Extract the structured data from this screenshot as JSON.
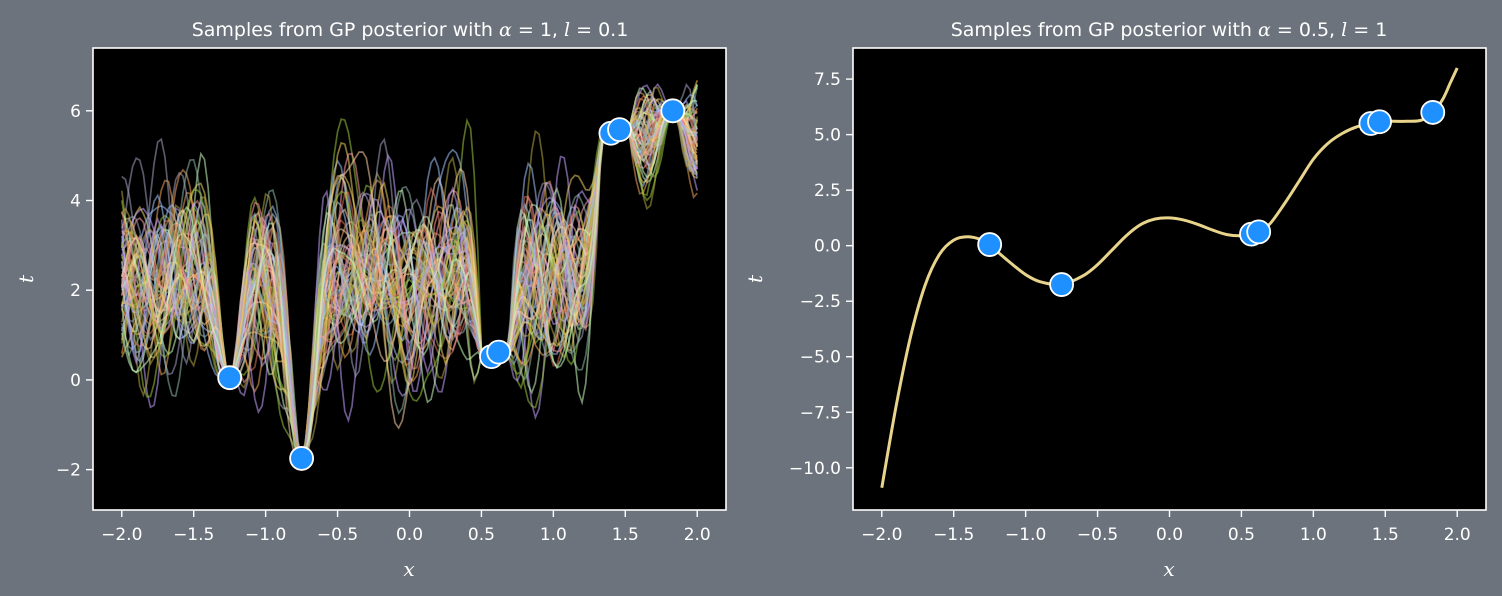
{
  "palette": {
    "figure_bg": "#6c737c",
    "axes_bg": "#000000",
    "text": "#ffffff",
    "point_fill": "#1e90ff",
    "point_edge": "#ffffff",
    "sample_colors": [
      "#e2725b",
      "#f2a65a",
      "#f4d35e",
      "#9bc53d",
      "#8fb9a8",
      "#a0c4ff",
      "#c5a3ff",
      "#ff9aa2",
      "#b5a642",
      "#a3a3c2",
      "#ffd6a5",
      "#caffbf"
    ]
  },
  "chart_data": [
    {
      "type": "line",
      "title_prefix": "Samples from GP posterior with ",
      "title_params": [
        {
          "sym": "α",
          "val": " = 1, "
        },
        {
          "sym": "l",
          "val": " = 0.1"
        }
      ],
      "xlabel": "x",
      "ylabel": "t",
      "xlim": [
        -2.2,
        2.2
      ],
      "ylim": [
        -2.9,
        7.4
      ],
      "xticks": [
        -2.0,
        -1.5,
        -1.0,
        -0.5,
        0.0,
        0.5,
        1.0,
        1.5,
        2.0
      ],
      "xtick_labels": [
        "−2.0",
        "−1.5",
        "−1.0",
        "−0.5",
        "0.0",
        "0.5",
        "1.0",
        "1.5",
        "2.0"
      ],
      "yticks": [
        -2,
        0,
        2,
        4,
        6
      ],
      "ytick_labels": [
        "−2",
        "0",
        "2",
        "4",
        "6"
      ],
      "grid": false,
      "legend": "none",
      "n_samples": 60,
      "points": [
        {
          "x": -1.25,
          "y": 0.05
        },
        {
          "x": -0.75,
          "y": -1.75
        },
        {
          "x": 0.57,
          "y": 0.52
        },
        {
          "x": 0.62,
          "y": 0.62
        },
        {
          "x": 1.4,
          "y": 5.5
        },
        {
          "x": 1.46,
          "y": 5.58
        },
        {
          "x": 1.83,
          "y": 6.0
        }
      ]
    },
    {
      "type": "line",
      "title_prefix": "Samples from GP posterior with ",
      "title_params": [
        {
          "sym": "α",
          "val": " = 0.5, "
        },
        {
          "sym": "l",
          "val": " = 1"
        }
      ],
      "xlabel": "x",
      "ylabel": "t",
      "xlim": [
        -2.2,
        2.2
      ],
      "ylim": [
        -11.9,
        8.9
      ],
      "xticks": [
        -2.0,
        -1.5,
        -1.0,
        -0.5,
        0.0,
        0.5,
        1.0,
        1.5,
        2.0
      ],
      "xtick_labels": [
        "−2.0",
        "−1.5",
        "−1.0",
        "−0.5",
        "0.0",
        "0.5",
        "1.0",
        "1.5",
        "2.0"
      ],
      "yticks": [
        -10.0,
        -7.5,
        -5.0,
        -2.5,
        0.0,
        2.5,
        5.0,
        7.5
      ],
      "ytick_labels": [
        "−10.0",
        "−7.5",
        "−5.0",
        "−2.5",
        "0.0",
        "2.5",
        "5.0",
        "7.5"
      ],
      "grid": false,
      "legend": "none",
      "line_color": "#e8d48b",
      "curve": {
        "x": [
          -2.0,
          -1.9,
          -1.8,
          -1.7,
          -1.6,
          -1.5,
          -1.4,
          -1.3,
          -1.25,
          -1.2,
          -1.1,
          -1.0,
          -0.9,
          -0.75,
          -0.6,
          -0.5,
          -0.4,
          -0.3,
          -0.2,
          -0.1,
          0.0,
          0.1,
          0.2,
          0.3,
          0.4,
          0.5,
          0.57,
          0.62,
          0.7,
          0.8,
          0.9,
          1.0,
          1.1,
          1.2,
          1.3,
          1.4,
          1.46,
          1.55,
          1.65,
          1.75,
          1.83,
          1.9,
          1.95,
          2.0
        ],
        "y": [
          -10.9,
          -7.2,
          -4.1,
          -1.8,
          -0.4,
          0.25,
          0.4,
          0.25,
          0.05,
          -0.25,
          -0.8,
          -1.3,
          -1.62,
          -1.75,
          -1.35,
          -0.85,
          -0.2,
          0.45,
          0.95,
          1.2,
          1.25,
          1.15,
          0.95,
          0.7,
          0.5,
          0.45,
          0.52,
          0.62,
          1.0,
          1.9,
          2.9,
          3.9,
          4.6,
          5.05,
          5.35,
          5.5,
          5.58,
          5.6,
          5.6,
          5.65,
          6.0,
          6.6,
          7.3,
          8.0
        ]
      },
      "points": [
        {
          "x": -1.25,
          "y": 0.05
        },
        {
          "x": -0.75,
          "y": -1.75
        },
        {
          "x": 0.57,
          "y": 0.52
        },
        {
          "x": 0.62,
          "y": 0.62
        },
        {
          "x": 1.4,
          "y": 5.5
        },
        {
          "x": 1.46,
          "y": 5.58
        },
        {
          "x": 1.83,
          "y": 6.0
        }
      ]
    }
  ]
}
